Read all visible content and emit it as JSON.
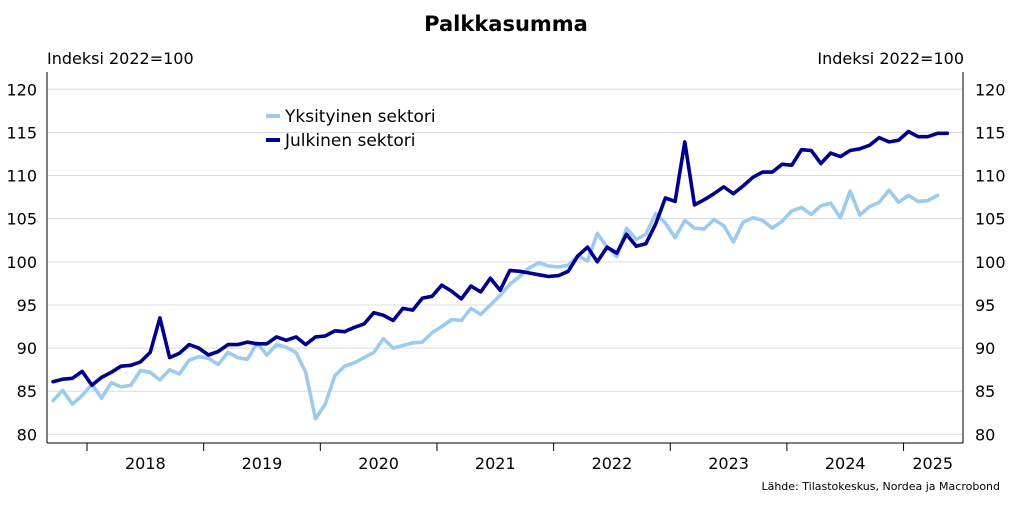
{
  "chart_data": {
    "type": "line",
    "title": "Palkkasumma",
    "ylabel_left": "Indeksi 2022=100",
    "ylabel_right": "Indeksi 2022=100",
    "ylim": [
      79,
      122
    ],
    "yticks": [
      80,
      85,
      90,
      95,
      100,
      105,
      110,
      115,
      120
    ],
    "x_start": "2017-09",
    "x_end": "2025-06",
    "year_labels": [
      "2018",
      "2019",
      "2020",
      "2021",
      "2022",
      "2023",
      "2024",
      "2025"
    ],
    "legend_position": "top-left",
    "grid": true,
    "source": "Lähde: Tilastokeskus, Nordea ja Macrobond",
    "series": [
      {
        "name": "Yksityinen sektori",
        "color": "#9ccbf0",
        "start": "2017-09",
        "values": [
          83.9,
          85.1,
          83.5,
          84.5,
          85.8,
          84.2,
          86.0,
          85.5,
          85.7,
          87.4,
          87.2,
          86.3,
          87.5,
          87.0,
          88.6,
          89.0,
          88.8,
          88.1,
          89.5,
          88.9,
          88.7,
          90.6,
          89.2,
          90.4,
          90.1,
          89.5,
          87.2,
          81.8,
          83.5,
          86.8,
          87.9,
          88.3,
          88.9,
          89.5,
          91.1,
          90.0,
          90.3,
          90.6,
          90.7,
          91.8,
          92.5,
          93.3,
          93.2,
          94.6,
          93.9,
          95.0,
          96.1,
          97.4,
          98.3,
          99.3,
          99.9,
          99.5,
          99.4,
          99.6,
          100.7,
          100.1,
          103.3,
          101.7,
          100.6,
          103.9,
          102.6,
          103.2,
          105.6,
          104.5,
          102.8,
          104.8,
          103.9,
          103.8,
          104.9,
          104.2,
          102.3,
          104.6,
          105.1,
          104.8,
          103.9,
          104.7,
          105.9,
          106.3,
          105.5,
          106.5,
          106.8,
          105.1,
          108.2,
          105.4,
          106.4,
          106.9,
          108.3,
          106.9,
          107.7,
          107.0,
          107.1,
          107.7
        ]
      },
      {
        "name": "Julkinen sektori",
        "color": "#00008b",
        "start": "2017-09",
        "values": [
          86.1,
          86.4,
          86.5,
          87.3,
          85.7,
          86.6,
          87.2,
          87.9,
          88.0,
          88.4,
          89.5,
          93.5,
          88.9,
          89.4,
          90.4,
          90.0,
          89.2,
          89.6,
          90.4,
          90.4,
          90.7,
          90.5,
          90.5,
          91.3,
          90.9,
          91.3,
          90.4,
          91.3,
          91.4,
          92.0,
          91.9,
          92.4,
          92.8,
          94.1,
          93.8,
          93.2,
          94.6,
          94.4,
          95.8,
          96.0,
          97.3,
          96.6,
          95.7,
          97.2,
          96.5,
          98.1,
          96.7,
          99.0,
          98.9,
          98.7,
          98.5,
          98.3,
          98.4,
          98.9,
          100.7,
          101.7,
          100.0,
          101.7,
          101.0,
          103.2,
          101.8,
          102.1,
          104.4,
          107.4,
          107.0,
          113.9,
          106.6,
          107.2,
          107.9,
          108.7,
          107.9,
          108.8,
          109.8,
          110.4,
          110.4,
          111.3,
          111.2,
          113.0,
          112.9,
          111.4,
          112.6,
          112.2,
          112.9,
          113.1,
          113.5,
          114.4,
          113.9,
          114.1,
          115.1,
          114.5,
          114.5,
          114.9,
          114.9
        ]
      }
    ]
  }
}
